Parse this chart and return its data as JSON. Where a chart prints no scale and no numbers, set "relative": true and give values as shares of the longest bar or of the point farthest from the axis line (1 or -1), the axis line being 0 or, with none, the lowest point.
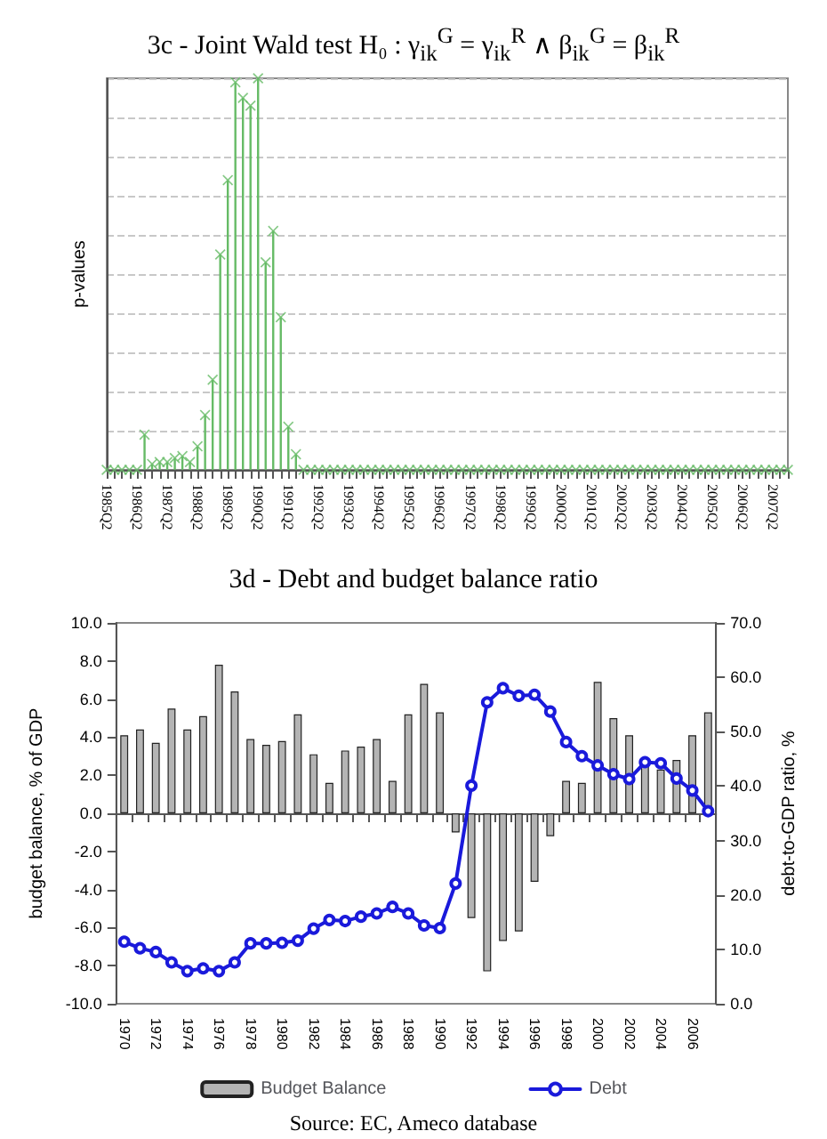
{
  "chart_data": [
    {
      "type": "lollipop",
      "title": "3c - Joint Wald test H₀ : γ$_{ik}$$^{G}$ = γ$_{ik}$$^{R}$ ∧ β$_{ik}$$^{G}$ = β$_{ik}$$^{R}$",
      "ylabel": "p-values",
      "relative": true,
      "grid": "y",
      "marker": "cross",
      "categories": [
        "1985Q2",
        null,
        null,
        null,
        "1986Q2",
        null,
        null,
        null,
        "1987Q2",
        null,
        null,
        null,
        "1988Q2",
        null,
        null,
        null,
        "1989Q2",
        null,
        null,
        null,
        "1990Q2",
        null,
        null,
        null,
        "1991Q2",
        null,
        null,
        null,
        "1992Q2",
        null,
        null,
        null,
        "1993Q2",
        null,
        null,
        null,
        "1994Q2",
        null,
        null,
        null,
        "1995Q2",
        null,
        null,
        null,
        "1996Q2",
        null,
        null,
        null,
        "1997Q2",
        null,
        null,
        null,
        "1998Q2",
        null,
        null,
        null,
        "1999Q2",
        null,
        null,
        null,
        "2000Q2",
        null,
        null,
        null,
        "2001Q2",
        null,
        null,
        null,
        "2002Q2",
        null,
        null,
        null,
        "2003Q2",
        null,
        null,
        null,
        "2004Q2",
        null,
        null,
        null,
        "2005Q2",
        null,
        null,
        null,
        "2006Q2",
        null,
        null,
        null,
        "2007Q2",
        null,
        null
      ],
      "series": [
        {
          "color": "#66bb66",
          "values": [
            0,
            0,
            0,
            0,
            0,
            0.09,
            0.015,
            0.02,
            0.02,
            0.03,
            0.035,
            0.02,
            0.06,
            0.14,
            0.23,
            0.55,
            0.74,
            0.99,
            0.95,
            0.93,
            1,
            0.53,
            0.61,
            0.39,
            0.11,
            0.04,
            0,
            0,
            0,
            0,
            0,
            0,
            0,
            0,
            0,
            0,
            0,
            0,
            0,
            0,
            0,
            0,
            0,
            0,
            0,
            0,
            0,
            0,
            0,
            0,
            0,
            0,
            0,
            0,
            0,
            0,
            0,
            0,
            0,
            0,
            0,
            0,
            0,
            0,
            0,
            0,
            0,
            0,
            0,
            0,
            0,
            0,
            0,
            0,
            0,
            0,
            0,
            0,
            0,
            0,
            0,
            0,
            0,
            0,
            0,
            0,
            0,
            0,
            0,
            0,
            0
          ]
        }
      ]
    },
    {
      "type": "bar",
      "title": "3d - Debt and budget balance ratio",
      "ylabel": "budget balance, % of GDP",
      "y2label": "debt-to-GDP ratio, %",
      "annotations": [
        "Source: EC, Ameco database"
      ],
      "legend": "bottom",
      "marker": "circle",
      "categories": [
        "1970",
        null,
        "1972",
        null,
        "1974",
        null,
        "1976",
        null,
        "1978",
        null,
        "1980",
        null,
        "1982",
        null,
        "1984",
        null,
        "1986",
        null,
        "1988",
        null,
        "1990",
        null,
        "1992",
        null,
        "1994",
        null,
        "1996",
        null,
        "1998",
        null,
        "2000",
        null,
        "2002",
        null,
        "2004",
        null,
        "2006",
        null
      ],
      "ylim": [
        -10,
        10
      ],
      "yticks": [
        {
          "value": -10,
          "label": "-10.0"
        },
        {
          "value": -8,
          "label": "-8.0"
        },
        {
          "value": -6,
          "label": "-6.0"
        },
        {
          "value": -4,
          "label": "-4.0"
        },
        {
          "value": -2,
          "label": "-2.0"
        },
        {
          "value": 0,
          "label": "0.0"
        },
        {
          "value": 2,
          "label": "2.0"
        },
        {
          "value": 4,
          "label": "4.0"
        },
        {
          "value": 6,
          "label": "6.0"
        },
        {
          "value": 8,
          "label": "8.0"
        },
        {
          "value": 10,
          "label": "10.0"
        }
      ],
      "y2lim": [
        0,
        70
      ],
      "y2ticks": [
        {
          "value": 0,
          "label": "0.0"
        },
        {
          "value": 10,
          "label": "10.0"
        },
        {
          "value": 20,
          "label": "20.0"
        },
        {
          "value": 30,
          "label": "30.0"
        },
        {
          "value": 40,
          "label": "40.0"
        },
        {
          "value": 50,
          "label": "50.0"
        },
        {
          "value": 60,
          "label": "60.0"
        },
        {
          "value": 70,
          "label": "70.0"
        }
      ],
      "series": [
        {
          "name": "Budget Balance",
          "color": "#b4b4b4",
          "values": [
            4.1,
            4.4,
            3.7,
            5.5,
            4.4,
            5.1,
            7.8,
            6.4,
            3.9,
            3.6,
            3.8,
            5.2,
            3.1,
            1.6,
            3.3,
            3.5,
            3.9,
            1.7,
            5.2,
            6.8,
            5.3,
            -1.0,
            -5.5,
            -8.3,
            -6.7,
            -6.2,
            -3.6,
            -1.2,
            1.7,
            1.6,
            6.9,
            5.0,
            4.1,
            2.7,
            2.3,
            2.8,
            4.1,
            5.3
          ]
        },
        {
          "name": "Debt",
          "type": "line",
          "axis": "y2",
          "color": "#1a1adb",
          "values": [
            11.4,
            10.2,
            9.5,
            7.6,
            6.0,
            6.5,
            6.0,
            7.6,
            11.1,
            11.1,
            11.2,
            11.6,
            13.8,
            15.4,
            15.2,
            16.0,
            16.6,
            17.8,
            16.6,
            14.4,
            13.9,
            22.1,
            40.1,
            55.4,
            58.0,
            56.6,
            56.8,
            53.7,
            48.1,
            45.5,
            43.8,
            42.2,
            41.3,
            44.4,
            44.2,
            41.4,
            39.2,
            35.4
          ]
        }
      ]
    }
  ]
}
